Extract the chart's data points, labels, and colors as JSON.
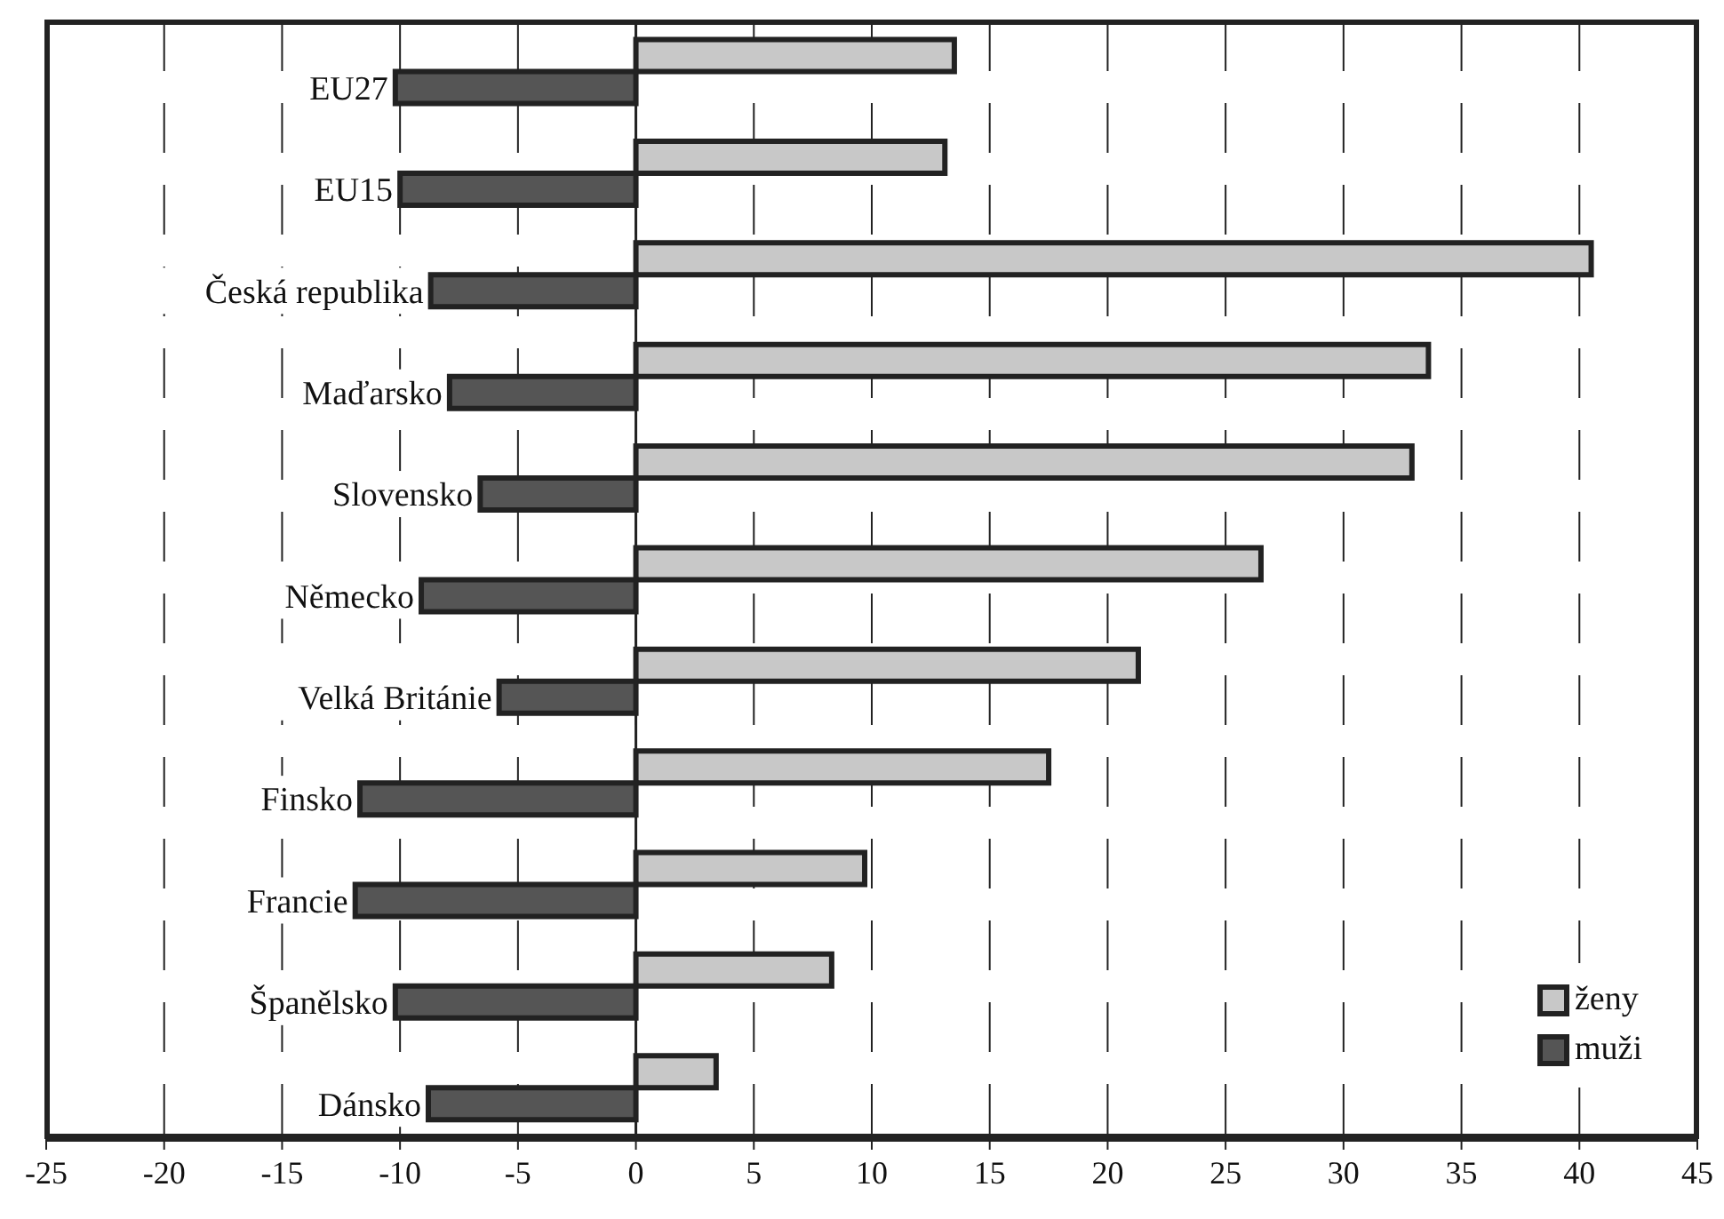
{
  "chart_data": {
    "type": "bar",
    "orientation": "horizontal",
    "categories": [
      "EU27",
      "EU15",
      "Česká republika",
      "Maďarsko",
      "Slovensko",
      "Německo",
      "Velká Británie",
      "Finsko",
      "Francie",
      "Španělsko",
      "Dánsko"
    ],
    "series": [
      {
        "name": "ženy",
        "color": "#c8c8c8",
        "values": [
          13.5,
          13.1,
          40.5,
          33.6,
          32.9,
          26.5,
          21.3,
          17.5,
          9.7,
          8.3,
          3.4
        ]
      },
      {
        "name": "muži",
        "color": "#555555",
        "values": [
          -10.2,
          -10.0,
          -8.7,
          -7.9,
          -6.6,
          -9.1,
          -5.8,
          -11.7,
          -11.9,
          -10.2,
          -8.8
        ]
      }
    ],
    "xlim": [
      -25,
      45
    ],
    "xticks": [
      -25,
      -20,
      -15,
      -10,
      -5,
      0,
      5,
      10,
      15,
      20,
      25,
      30,
      35,
      40,
      45
    ],
    "grid": "x",
    "legend": "bottom right"
  }
}
